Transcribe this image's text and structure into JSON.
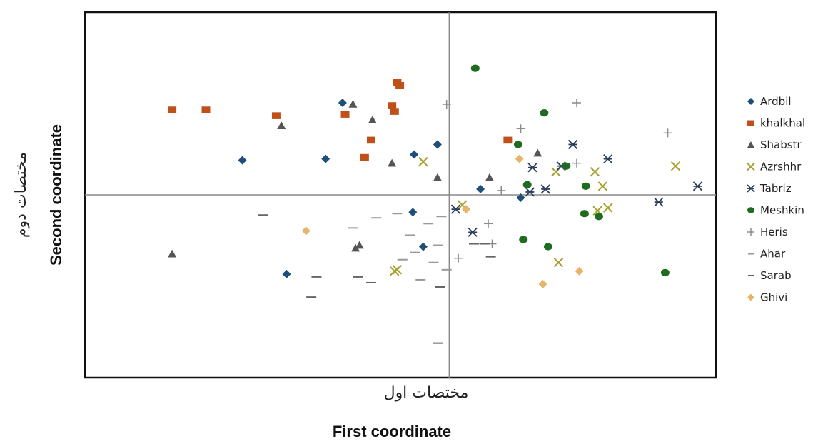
{
  "chart_data": {
    "type": "scatter",
    "xlabel": "First coordinate",
    "xlabel_fa": "مختصات اول",
    "ylabel": "Second coordinate",
    "ylabel_fa": "مختصات دوم",
    "xlim": [
      -2.8,
      2.05
    ],
    "ylim": [
      -1.27,
      1.27
    ],
    "grid": false,
    "reference_lines": {
      "x": 0,
      "y": 0
    },
    "legend_position": "right",
    "series": [
      {
        "name": "Ardbil",
        "marker": "diamond",
        "color": "#1f4e79",
        "points": [
          [
            -1.59,
            0.24
          ],
          [
            -0.95,
            0.25
          ],
          [
            -0.82,
            0.64
          ],
          [
            -0.27,
            0.28
          ],
          [
            -0.09,
            0.35
          ],
          [
            -0.28,
            -0.12
          ],
          [
            -0.2,
            -0.36
          ],
          [
            -1.25,
            -0.55
          ],
          [
            0.24,
            0.04
          ],
          [
            0.55,
            -0.02
          ]
        ]
      },
      {
        "name": "khalkhal",
        "marker": "square",
        "color": "#c0501a",
        "points": [
          [
            -1.87,
            0.59
          ],
          [
            -2.13,
            0.59
          ],
          [
            -1.33,
            0.55
          ],
          [
            -0.8,
            0.56
          ],
          [
            -0.4,
            0.78
          ],
          [
            -0.38,
            0.76
          ],
          [
            -0.44,
            0.62
          ],
          [
            -0.42,
            0.58
          ],
          [
            -0.6,
            0.38
          ],
          [
            -0.65,
            0.26
          ],
          [
            0.45,
            0.38
          ]
        ]
      },
      {
        "name": "Shabstr",
        "marker": "triangle",
        "color": "#555555",
        "points": [
          [
            -1.29,
            0.48
          ],
          [
            -2.13,
            -0.41
          ],
          [
            -0.74,
            0.63
          ],
          [
            -0.59,
            0.52
          ],
          [
            -0.44,
            0.22
          ],
          [
            -0.09,
            0.12
          ],
          [
            -0.69,
            -0.35
          ],
          [
            -0.72,
            -0.37
          ],
          [
            0.31,
            0.12
          ],
          [
            0.68,
            0.29
          ]
        ]
      },
      {
        "name": "Azrshhr",
        "marker": "x",
        "color": "#a8a030",
        "points": [
          [
            -0.2,
            0.23
          ],
          [
            0.82,
            0.16
          ],
          [
            1.12,
            0.16
          ],
          [
            1.18,
            0.06
          ],
          [
            1.74,
            0.2
          ],
          [
            1.14,
            -0.11
          ],
          [
            1.22,
            -0.09
          ],
          [
            0.84,
            -0.47
          ],
          [
            0.1,
            -0.07
          ],
          [
            -0.42,
            -0.53
          ],
          [
            -0.4,
            -0.52
          ]
        ]
      },
      {
        "name": "Tabriz",
        "marker": "asterisk",
        "color": "#2a3f5a",
        "points": [
          [
            0.95,
            0.35
          ],
          [
            0.86,
            0.2
          ],
          [
            1.22,
            0.25
          ],
          [
            0.64,
            0.19
          ],
          [
            0.74,
            0.04
          ],
          [
            1.91,
            0.06
          ],
          [
            1.61,
            -0.05
          ],
          [
            0.62,
            0.02
          ],
          [
            0.05,
            -0.1
          ],
          [
            0.18,
            -0.26
          ]
        ]
      },
      {
        "name": "Meshkin",
        "marker": "circle",
        "color": "#1f6b1f",
        "points": [
          [
            0.2,
            0.88
          ],
          [
            0.73,
            0.57
          ],
          [
            0.9,
            0.2
          ],
          [
            0.6,
            0.07
          ],
          [
            1.05,
            0.06
          ],
          [
            0.53,
            0.35
          ],
          [
            1.04,
            -0.13
          ],
          [
            1.15,
            -0.15
          ],
          [
            0.76,
            -0.36
          ],
          [
            0.57,
            -0.31
          ],
          [
            1.66,
            -0.54
          ]
        ]
      },
      {
        "name": "Heris",
        "marker": "plus",
        "color": "#8a8a8a",
        "points": [
          [
            -0.02,
            0.63
          ],
          [
            0.98,
            0.64
          ],
          [
            0.55,
            0.46
          ],
          [
            1.68,
            0.43
          ],
          [
            0.98,
            0.22
          ],
          [
            0.4,
            0.03
          ],
          [
            0.3,
            -0.2
          ],
          [
            0.33,
            -0.34
          ],
          [
            0.07,
            -0.44
          ]
        ]
      },
      {
        "name": "Ahar",
        "marker": "dash",
        "color": "#999999",
        "points": [
          [
            -0.06,
            -0.15
          ],
          [
            -0.3,
            -0.28
          ],
          [
            -0.16,
            -0.2
          ],
          [
            -0.4,
            -0.13
          ],
          [
            -0.56,
            -0.16
          ],
          [
            -0.74,
            -0.23
          ],
          [
            -0.02,
            -0.52
          ],
          [
            -0.22,
            -0.59
          ],
          [
            -0.26,
            -0.4
          ],
          [
            -0.36,
            -0.45
          ],
          [
            -0.09,
            -0.35
          ],
          [
            -0.12,
            -0.47
          ]
        ]
      },
      {
        "name": "Sarab",
        "marker": "dash",
        "color": "#666666",
        "points": [
          [
            -1.43,
            -0.14
          ],
          [
            -1.02,
            -0.57
          ],
          [
            -1.06,
            -0.71
          ],
          [
            -0.7,
            -0.57
          ],
          [
            -0.6,
            -0.61
          ],
          [
            -0.07,
            -0.64
          ],
          [
            -0.09,
            -1.03
          ],
          [
            0.32,
            -0.43
          ],
          [
            0.27,
            -0.34
          ],
          [
            0.19,
            -0.34
          ]
        ]
      },
      {
        "name": "Ghivi",
        "marker": "diamond",
        "color": "#e8b46a",
        "points": [
          [
            -1.1,
            -0.25
          ],
          [
            0.13,
            -0.1
          ],
          [
            0.72,
            -0.62
          ],
          [
            1.0,
            -0.53
          ],
          [
            0.54,
            0.25
          ]
        ]
      }
    ]
  }
}
